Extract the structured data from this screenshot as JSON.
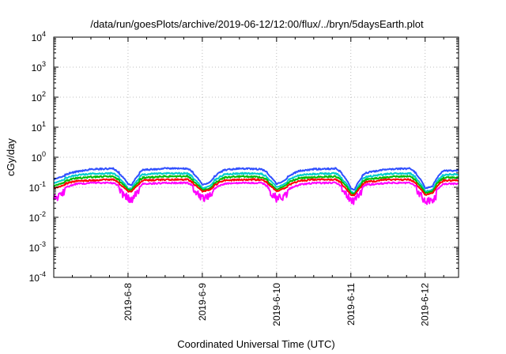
{
  "chart_data": {
    "type": "line",
    "title": "/data/run/goesPlots/archive/2019-06-12/12:00/flux/../bryn/5daysEarth.plot",
    "xlabel": "Coordinated Universal Time (UTC)",
    "ylabel": "cGy/day",
    "yscale": "log",
    "ylim": [
      0.0001,
      10000
    ],
    "xlim": [
      0,
      5.45
    ],
    "x_unit": "days since 2019-6-7 00:00 UTC",
    "grid": true,
    "legend": "none",
    "y_ticks": [
      {
        "value": 0.0001,
        "base": "10",
        "exp": "-4"
      },
      {
        "value": 0.001,
        "base": "10",
        "exp": "-3"
      },
      {
        "value": 0.01,
        "base": "10",
        "exp": "-2"
      },
      {
        "value": 0.1,
        "base": "10",
        "exp": "-1"
      },
      {
        "value": 1,
        "base": "10",
        "exp": "0"
      },
      {
        "value": 10,
        "base": "10",
        "exp": "1"
      },
      {
        "value": 100,
        "base": "10",
        "exp": "2"
      },
      {
        "value": 1000,
        "base": "10",
        "exp": "3"
      },
      {
        "value": 10000,
        "base": "10",
        "exp": "4"
      }
    ],
    "x_ticks": [
      {
        "value": 1,
        "label": "2019-6-8"
      },
      {
        "value": 2,
        "label": "2019-6-9"
      },
      {
        "value": 3,
        "label": "2019-6-10"
      },
      {
        "value": 4,
        "label": "2019-6-11"
      },
      {
        "value": 5,
        "label": "2019-6-12"
      }
    ],
    "series_colors": [
      "#ff00ff",
      "#ff0000",
      "#00bb00",
      "#00cccc",
      "#3050ff"
    ],
    "series": [
      {
        "color": "#3050ff",
        "x": [
          0.0,
          0.3,
          0.5,
          0.8,
          1.0,
          1.05,
          1.2,
          1.5,
          1.8,
          2.0,
          2.1,
          2.3,
          2.5,
          2.8,
          3.0,
          3.1,
          3.3,
          3.5,
          3.8,
          4.0,
          4.05,
          4.2,
          4.5,
          4.8,
          5.0,
          5.1,
          5.25,
          5.45
        ],
        "y": [
          0.2,
          0.33,
          0.4,
          0.42,
          0.14,
          0.13,
          0.38,
          0.42,
          0.42,
          0.13,
          0.16,
          0.38,
          0.42,
          0.4,
          0.14,
          0.18,
          0.35,
          0.4,
          0.42,
          0.1,
          0.09,
          0.3,
          0.4,
          0.42,
          0.1,
          0.12,
          0.35,
          0.36
        ]
      },
      {
        "color": "#00cccc",
        "x": [
          0.0,
          0.3,
          0.5,
          0.8,
          1.0,
          1.05,
          1.2,
          1.5,
          1.8,
          2.0,
          2.1,
          2.3,
          2.5,
          2.8,
          3.0,
          3.1,
          3.3,
          3.5,
          3.8,
          4.0,
          4.05,
          4.2,
          4.5,
          4.8,
          5.0,
          5.1,
          5.25,
          5.45
        ],
        "y": [
          0.15,
          0.25,
          0.28,
          0.29,
          0.1,
          0.1,
          0.27,
          0.29,
          0.29,
          0.1,
          0.12,
          0.27,
          0.29,
          0.28,
          0.11,
          0.14,
          0.25,
          0.28,
          0.29,
          0.08,
          0.07,
          0.22,
          0.28,
          0.29,
          0.08,
          0.09,
          0.26,
          0.27
        ]
      },
      {
        "color": "#00bb00",
        "x": [
          0.0,
          0.3,
          0.5,
          0.8,
          1.0,
          1.05,
          1.2,
          1.5,
          1.8,
          2.0,
          2.1,
          2.3,
          2.5,
          2.8,
          3.0,
          3.1,
          3.3,
          3.5,
          3.8,
          4.0,
          4.05,
          4.2,
          4.5,
          4.8,
          5.0,
          5.1,
          5.25,
          5.45
        ],
        "y": [
          0.12,
          0.2,
          0.22,
          0.23,
          0.09,
          0.09,
          0.21,
          0.23,
          0.23,
          0.09,
          0.1,
          0.21,
          0.23,
          0.22,
          0.09,
          0.12,
          0.2,
          0.22,
          0.23,
          0.07,
          0.065,
          0.18,
          0.22,
          0.23,
          0.07,
          0.08,
          0.21,
          0.21
        ]
      },
      {
        "color": "#ff0000",
        "x": [
          0.0,
          0.3,
          0.5,
          0.8,
          1.0,
          1.05,
          1.2,
          1.5,
          1.8,
          2.0,
          2.1,
          2.3,
          2.5,
          2.8,
          3.0,
          3.1,
          3.3,
          3.5,
          3.8,
          4.0,
          4.05,
          4.2,
          4.5,
          4.8,
          5.0,
          5.1,
          5.25,
          5.45
        ],
        "y": [
          0.1,
          0.16,
          0.17,
          0.18,
          0.08,
          0.08,
          0.17,
          0.18,
          0.18,
          0.08,
          0.09,
          0.17,
          0.18,
          0.18,
          0.08,
          0.1,
          0.16,
          0.18,
          0.18,
          0.06,
          0.06,
          0.15,
          0.18,
          0.18,
          0.06,
          0.07,
          0.17,
          0.17
        ]
      },
      {
        "color": "#ff00ff",
        "x": [
          0.0,
          0.3,
          0.5,
          0.8,
          1.0,
          1.05,
          1.2,
          1.5,
          1.8,
          2.0,
          2.1,
          2.3,
          2.5,
          2.8,
          3.0,
          3.1,
          3.3,
          3.5,
          3.8,
          4.0,
          4.05,
          4.2,
          4.5,
          4.8,
          5.0,
          5.1,
          5.25,
          5.45
        ],
        "y": [
          0.06,
          0.13,
          0.14,
          0.14,
          0.06,
          0.05,
          0.13,
          0.14,
          0.14,
          0.06,
          0.07,
          0.13,
          0.14,
          0.14,
          0.06,
          0.07,
          0.12,
          0.14,
          0.14,
          0.05,
          0.05,
          0.12,
          0.14,
          0.14,
          0.05,
          0.05,
          0.13,
          0.13
        ]
      }
    ]
  }
}
